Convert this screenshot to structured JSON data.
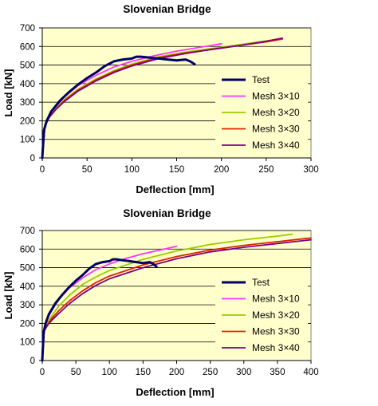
{
  "chart_data": [
    {
      "type": "line",
      "title": "Slovenian Bridge",
      "xlabel": "Deflection [mm]",
      "ylabel": "Load [kN]",
      "xlim": [
        0,
        300
      ],
      "ylim": [
        0,
        700
      ],
      "xticks": [
        0,
        50,
        100,
        150,
        200,
        250,
        300
      ],
      "yticks": [
        0,
        100,
        200,
        300,
        400,
        500,
        600,
        700
      ],
      "grid": "horizontal",
      "legend_position": "bottom-right",
      "plot_background": "#ffffcc",
      "series": [
        {
          "name": "Test",
          "color": "#000066",
          "width": 3,
          "x": [
            0,
            2,
            5,
            10,
            20,
            30,
            40,
            50,
            60,
            70,
            80,
            90,
            100,
            105,
            110,
            120,
            130,
            140,
            150,
            160,
            165,
            170
          ],
          "y": [
            0,
            150,
            200,
            250,
            310,
            355,
            395,
            430,
            460,
            495,
            520,
            530,
            535,
            545,
            545,
            540,
            535,
            530,
            525,
            530,
            520,
            505
          ]
        },
        {
          "name": "Mesh 3×10",
          "color": "#ff33ff",
          "width": 1.8,
          "x": [
            0,
            3,
            8,
            15,
            25,
            40,
            60,
            80,
            100,
            125,
            150,
            175,
            200
          ],
          "y": [
            0,
            180,
            230,
            275,
            330,
            390,
            445,
            490,
            520,
            550,
            575,
            595,
            615
          ]
        },
        {
          "name": "Mesh 3×20",
          "color": "#99cc00",
          "width": 1.8,
          "x": [
            0,
            3,
            8,
            15,
            25,
            40,
            60,
            80,
            100,
            130,
            160,
            190,
            220,
            250,
            265
          ],
          "y": [
            0,
            180,
            225,
            265,
            315,
            370,
            425,
            470,
            505,
            545,
            570,
            590,
            610,
            630,
            640
          ]
        },
        {
          "name": "Mesh 3×30",
          "color": "#dd2200",
          "width": 1.8,
          "x": [
            0,
            3,
            8,
            15,
            25,
            40,
            60,
            80,
            100,
            130,
            160,
            190,
            220,
            250,
            268
          ],
          "y": [
            0,
            175,
            220,
            260,
            310,
            365,
            420,
            465,
            500,
            540,
            565,
            585,
            605,
            625,
            640
          ]
        },
        {
          "name": "Mesh 3×40",
          "color": "#800080",
          "width": 1.8,
          "x": [
            0,
            3,
            8,
            15,
            25,
            40,
            60,
            80,
            100,
            130,
            160,
            190,
            220,
            250,
            268
          ],
          "y": [
            0,
            175,
            220,
            260,
            305,
            360,
            415,
            460,
            495,
            535,
            562,
            585,
            605,
            628,
            645
          ]
        }
      ]
    },
    {
      "type": "line",
      "title": "Slovenian Bridge",
      "xlabel": "Deflection [mm]",
      "ylabel": "Load [kN]",
      "xlim": [
        0,
        400
      ],
      "ylim": [
        0,
        700
      ],
      "xticks": [
        0,
        50,
        100,
        150,
        200,
        250,
        300,
        350,
        400
      ],
      "yticks": [
        0,
        100,
        200,
        300,
        400,
        500,
        600,
        700
      ],
      "grid": "horizontal",
      "legend_position": "bottom-right",
      "plot_background": "#ffffcc",
      "series": [
        {
          "name": "Test",
          "color": "#000066",
          "width": 3,
          "x": [
            0,
            2,
            5,
            10,
            20,
            30,
            40,
            50,
            60,
            70,
            80,
            90,
            100,
            105,
            110,
            120,
            130,
            140,
            150,
            160,
            165,
            170
          ],
          "y": [
            0,
            150,
            200,
            250,
            310,
            355,
            395,
            430,
            460,
            495,
            520,
            530,
            535,
            545,
            545,
            540,
            535,
            530,
            525,
            530,
            520,
            505
          ]
        },
        {
          "name": "Mesh 3×10",
          "color": "#ff33ff",
          "width": 1.8,
          "x": [
            0,
            3,
            8,
            15,
            25,
            40,
            60,
            80,
            100,
            125,
            150,
            175,
            200
          ],
          "y": [
            0,
            180,
            230,
            275,
            330,
            390,
            445,
            490,
            520,
            550,
            575,
            595,
            615
          ]
        },
        {
          "name": "Mesh 3×20",
          "color": "#99cc00",
          "width": 1.8,
          "x": [
            0,
            3,
            8,
            15,
            25,
            40,
            60,
            80,
            100,
            150,
            200,
            250,
            300,
            350,
            372
          ],
          "y": [
            0,
            170,
            205,
            245,
            295,
            350,
            410,
            450,
            485,
            545,
            590,
            625,
            650,
            670,
            680
          ]
        },
        {
          "name": "Mesh 3×30",
          "color": "#dd2200",
          "width": 1.8,
          "x": [
            0,
            3,
            8,
            15,
            25,
            40,
            60,
            80,
            100,
            150,
            200,
            250,
            300,
            350,
            400
          ],
          "y": [
            0,
            165,
            195,
            230,
            270,
            320,
            375,
            420,
            455,
            515,
            560,
            595,
            620,
            640,
            660
          ]
        },
        {
          "name": "Mesh 3×40",
          "color": "#800080",
          "width": 1.8,
          "x": [
            0,
            3,
            8,
            15,
            25,
            40,
            60,
            80,
            100,
            150,
            200,
            250,
            300,
            350,
            400
          ],
          "y": [
            0,
            160,
            190,
            220,
            255,
            305,
            360,
            405,
            440,
            500,
            548,
            585,
            610,
            630,
            650
          ]
        }
      ]
    }
  ]
}
